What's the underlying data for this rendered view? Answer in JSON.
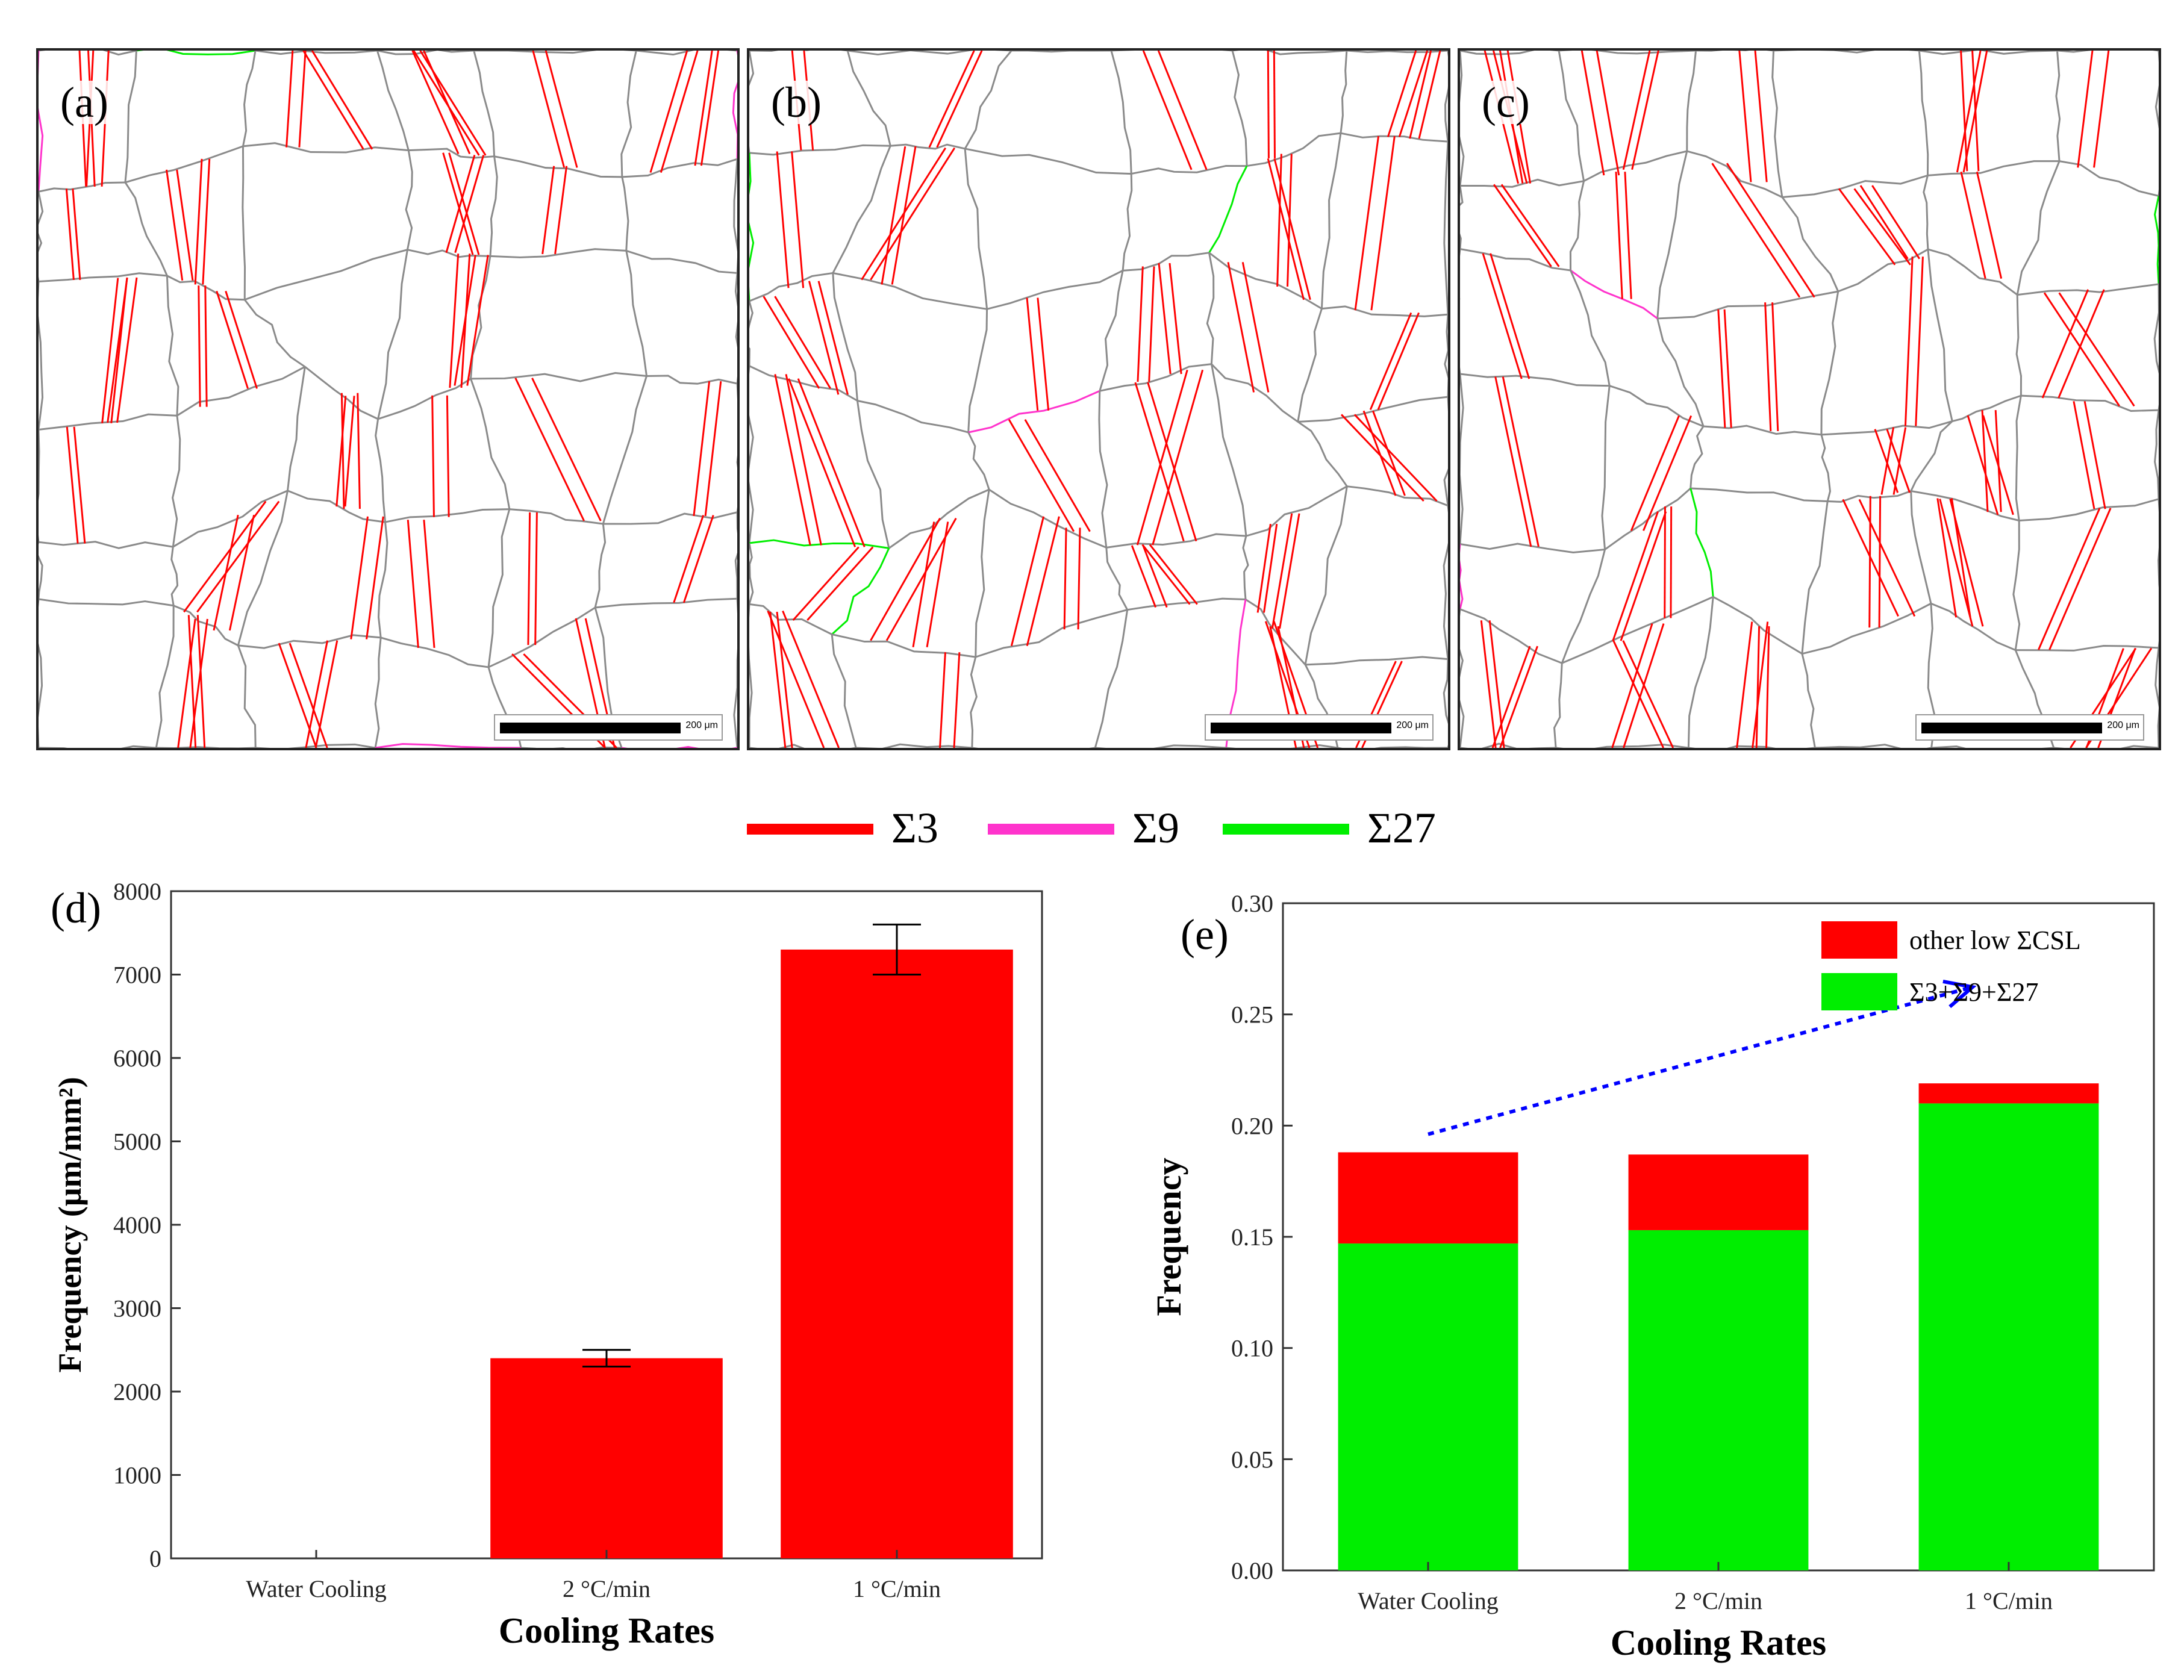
{
  "micrographs": [
    {
      "label": "(a)",
      "scale_text": "200 μm"
    },
    {
      "label": "(b)",
      "scale_text": "200 μm"
    },
    {
      "label": "(c)",
      "scale_text": "200 μm"
    }
  ],
  "boundary_legend": [
    {
      "name": "Σ3",
      "color": "#ff0000"
    },
    {
      "name": "Σ9",
      "color": "#ff33cc"
    },
    {
      "name": "Σ27",
      "color": "#00ee00"
    }
  ],
  "chart_data": [
    {
      "panel": "(d)",
      "type": "bar",
      "categories": [
        "Water Cooling",
        "2 °C/min",
        "1 °C/min"
      ],
      "values": [
        0,
        2400,
        7300
      ],
      "errors": [
        0,
        100,
        300
      ],
      "color": "#ff0000",
      "xlabel": "Cooling Rates",
      "ylabel": "Frequency (μm/mm²)",
      "ylim": [
        0,
        8000
      ],
      "yticks": [
        0,
        1000,
        2000,
        3000,
        4000,
        5000,
        6000,
        7000,
        8000
      ],
      "grid": false
    },
    {
      "panel": "(e)",
      "type": "bar",
      "stacked": true,
      "categories": [
        "Water Cooling",
        "2 °C/min",
        "1 °C/min"
      ],
      "series": [
        {
          "name": "Σ3+Σ9+Σ27",
          "values": [
            0.147,
            0.153,
            0.21
          ],
          "color": "#00ee00"
        },
        {
          "name": "other low ΣCSL",
          "values": [
            0.041,
            0.034,
            0.009
          ],
          "color": "#ff0000"
        }
      ],
      "legend_order": [
        "other low ΣCSL",
        "Σ3+Σ9+Σ27"
      ],
      "legend_position": "top-right",
      "trend_arrow_color": "#0000ff",
      "xlabel": "Cooling Rates",
      "ylabel": "Frequency",
      "ylim": [
        0,
        0.3
      ],
      "yticks": [
        "0.00",
        "0.05",
        "0.10",
        "0.15",
        "0.20",
        "0.25",
        "0.30"
      ],
      "grid": false
    }
  ]
}
